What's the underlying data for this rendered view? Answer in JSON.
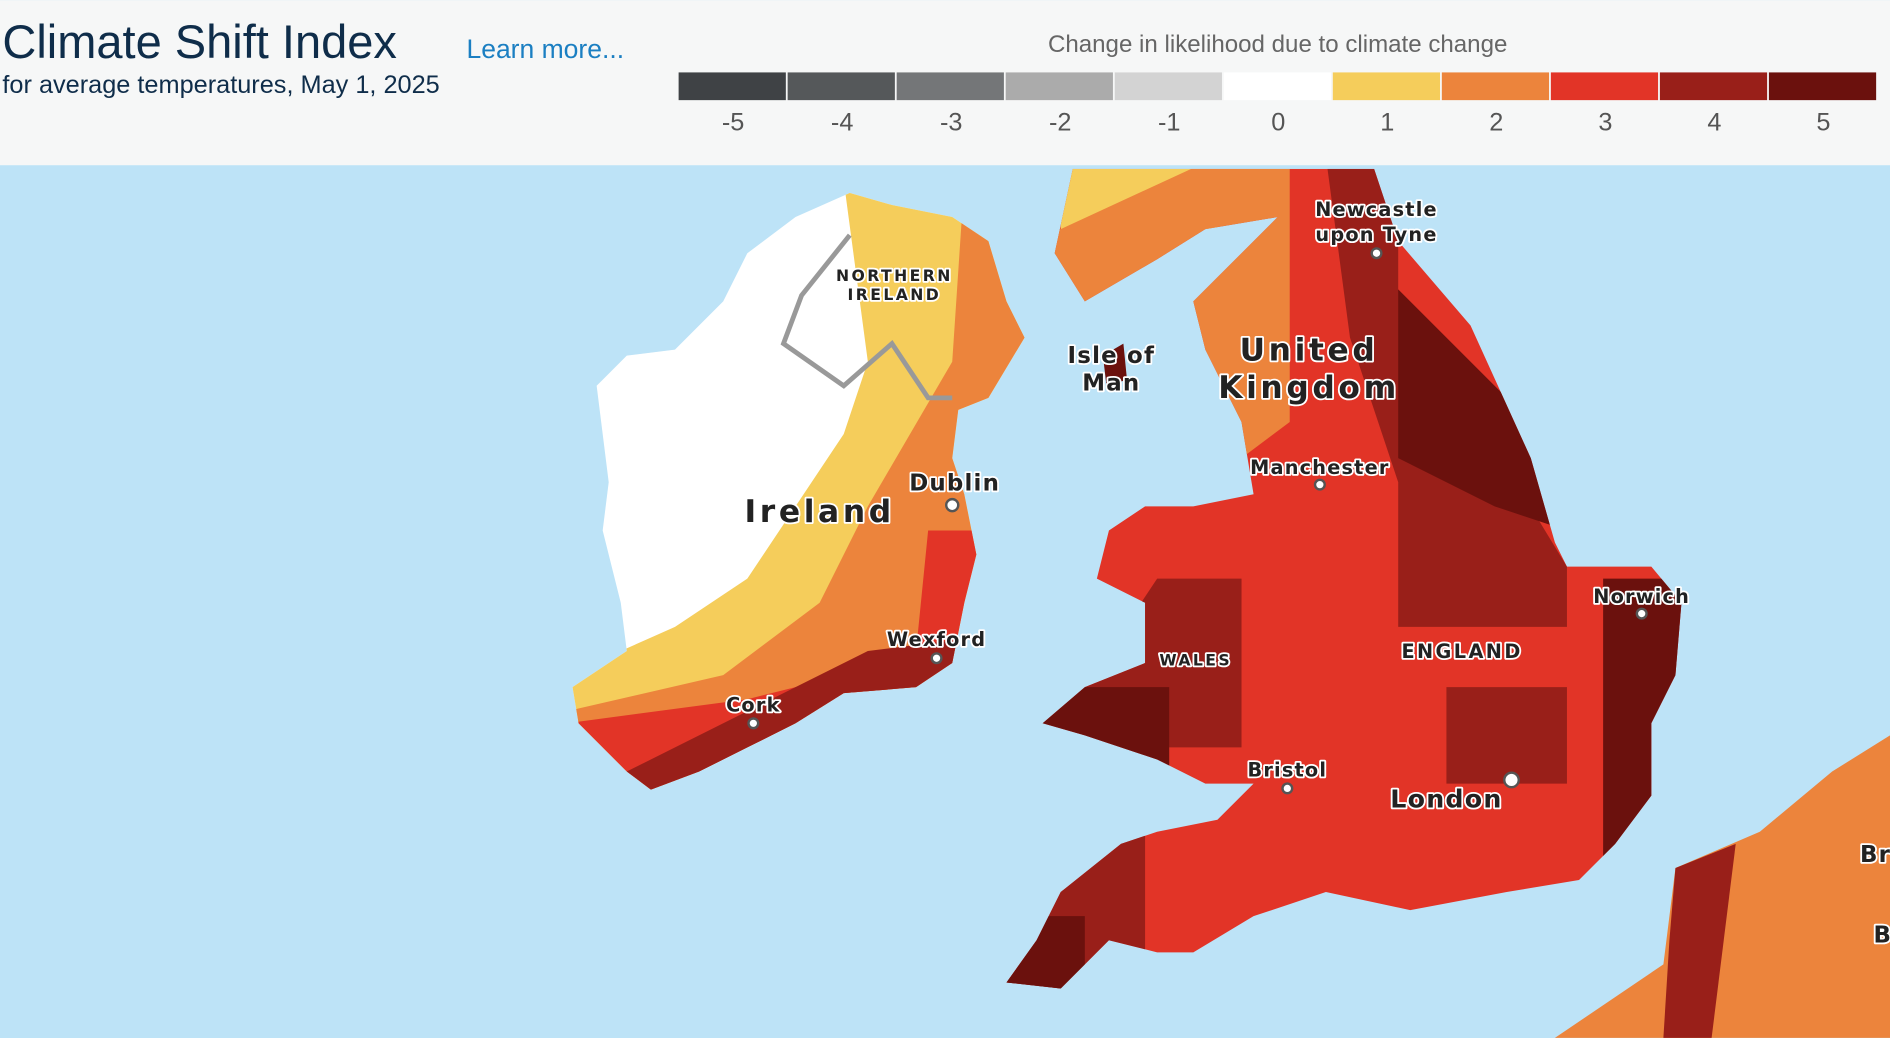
{
  "header": {
    "title": "Climate Shift Index",
    "link": "Learn more...",
    "subtitle": "for average temperatures, May 1, 2025"
  },
  "legend": {
    "title": "Change in likelihood due to climate change",
    "items": [
      {
        "label": -5,
        "color": "#3f4245"
      },
      {
        "label": -4,
        "color": "#55585a"
      },
      {
        "label": -3,
        "color": "#747678"
      },
      {
        "label": -2,
        "color": "#ababab"
      },
      {
        "label": -1,
        "color": "#d3d3d3"
      },
      {
        "label": 0,
        "color": "#ffffff"
      },
      {
        "label": 1,
        "color": "#f5cd5b"
      },
      {
        "label": 2,
        "color": "#ec843c"
      },
      {
        "label": 3,
        "color": "#e23427"
      },
      {
        "label": 4,
        "color": "#991f19"
      },
      {
        "label": 5,
        "color": "#6b110d"
      }
    ]
  },
  "map": {
    "labels": [
      [
        "Newcastle",
        "upon Tyne"
      ],
      [
        "NORTHERN",
        "IRELAND"
      ],
      [
        "Isle of",
        "Man"
      ],
      [
        "United",
        "Kingdom"
      ],
      [
        "Manchester"
      ],
      [
        "Dublin"
      ],
      [
        "Ireland"
      ],
      [
        "Norwich"
      ],
      [
        "ENGLAND"
      ],
      [
        "WALES"
      ],
      [
        "Wexford"
      ],
      [
        "Cork"
      ],
      [
        "Bristol"
      ],
      [
        "London"
      ],
      [
        "Br"
      ],
      [
        "B"
      ]
    ]
  }
}
